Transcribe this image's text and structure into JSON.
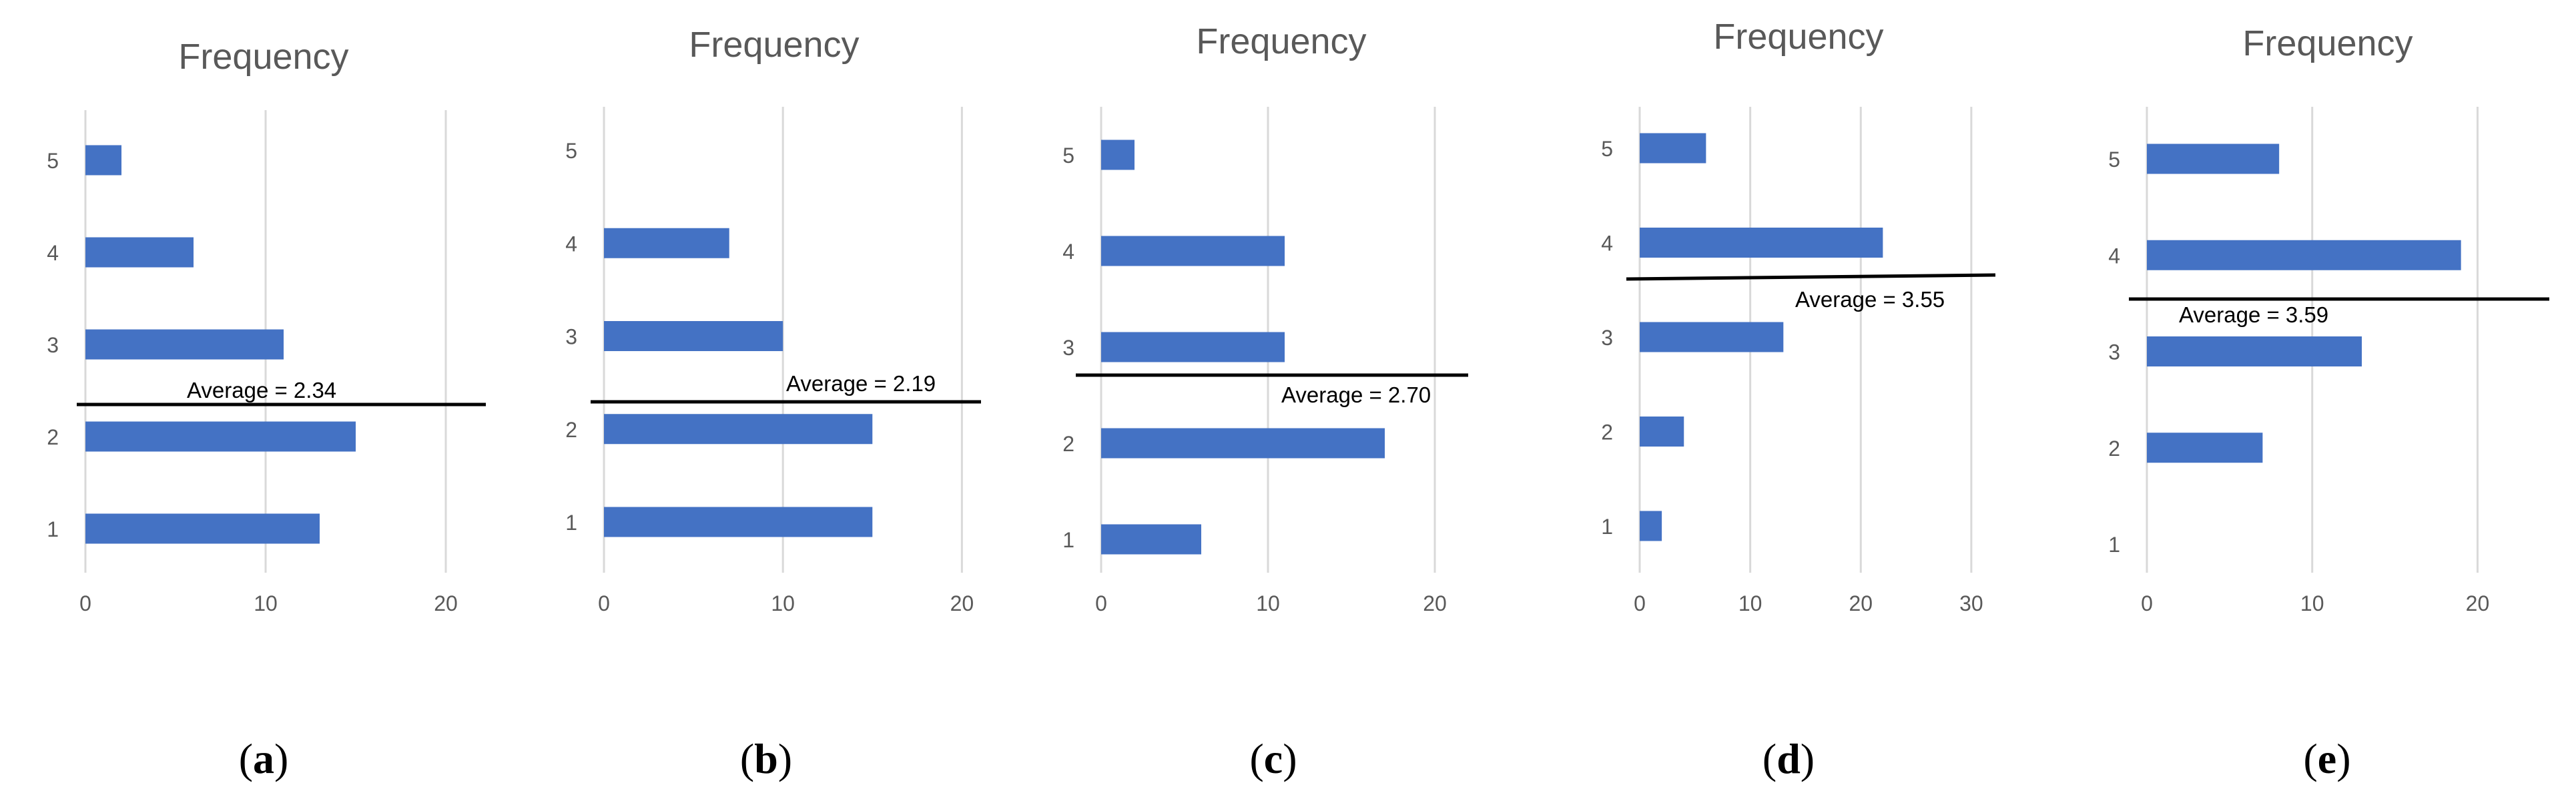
{
  "chart_data": [
    {
      "type": "bar",
      "orientation": "horizontal",
      "panel": "a",
      "title": "Frequency",
      "categories": [
        "1",
        "2",
        "3",
        "4",
        "5"
      ],
      "values": [
        13,
        15,
        11,
        6,
        2
      ],
      "xlim": [
        0,
        22
      ],
      "xticks": [
        "0",
        "10",
        "20"
      ],
      "average": 2.34,
      "average_label": "Average = 2.34",
      "color": "#4472c4"
    },
    {
      "type": "bar",
      "orientation": "horizontal",
      "panel": "b",
      "title": "Frequency",
      "categories": [
        "1",
        "2",
        "3",
        "4",
        "5"
      ],
      "values": [
        15,
        15,
        10,
        7,
        0
      ],
      "xlim": [
        0,
        22
      ],
      "xticks": [
        "0",
        "10",
        "20"
      ],
      "average": 2.19,
      "average_label": "Average = 2.19",
      "color": "#4472c4"
    },
    {
      "type": "bar",
      "orientation": "horizontal",
      "panel": "c",
      "title": "Frequency",
      "categories": [
        "1",
        "2",
        "3",
        "4",
        "5"
      ],
      "values": [
        6,
        17,
        11,
        11,
        2
      ],
      "xlim": [
        0,
        21
      ],
      "xticks": [
        "0",
        "10",
        "20"
      ],
      "average": 2.7,
      "average_label": "Average = 2.70",
      "color": "#4472c4"
    },
    {
      "type": "bar",
      "orientation": "horizontal",
      "panel": "d",
      "title": "Frequency",
      "categories": [
        "1",
        "2",
        "3",
        "4",
        "5"
      ],
      "values": [
        2,
        4,
        13,
        22,
        6
      ],
      "xlim": [
        0,
        32
      ],
      "xticks": [
        "0",
        "10",
        "20",
        "30"
      ],
      "average": 3.55,
      "average_label": "Average = 3.55",
      "color": "#4472c4"
    },
    {
      "type": "bar",
      "orientation": "horizontal",
      "panel": "e",
      "title": "Frequency",
      "categories": [
        "1",
        "2",
        "3",
        "4",
        "5"
      ],
      "values": [
        0,
        7,
        13,
        19,
        8
      ],
      "xlim": [
        0,
        22
      ],
      "xticks": [
        "0",
        "10",
        "20"
      ],
      "average": 3.59,
      "average_label": "Average = 3.59",
      "color": "#4472c4"
    }
  ]
}
